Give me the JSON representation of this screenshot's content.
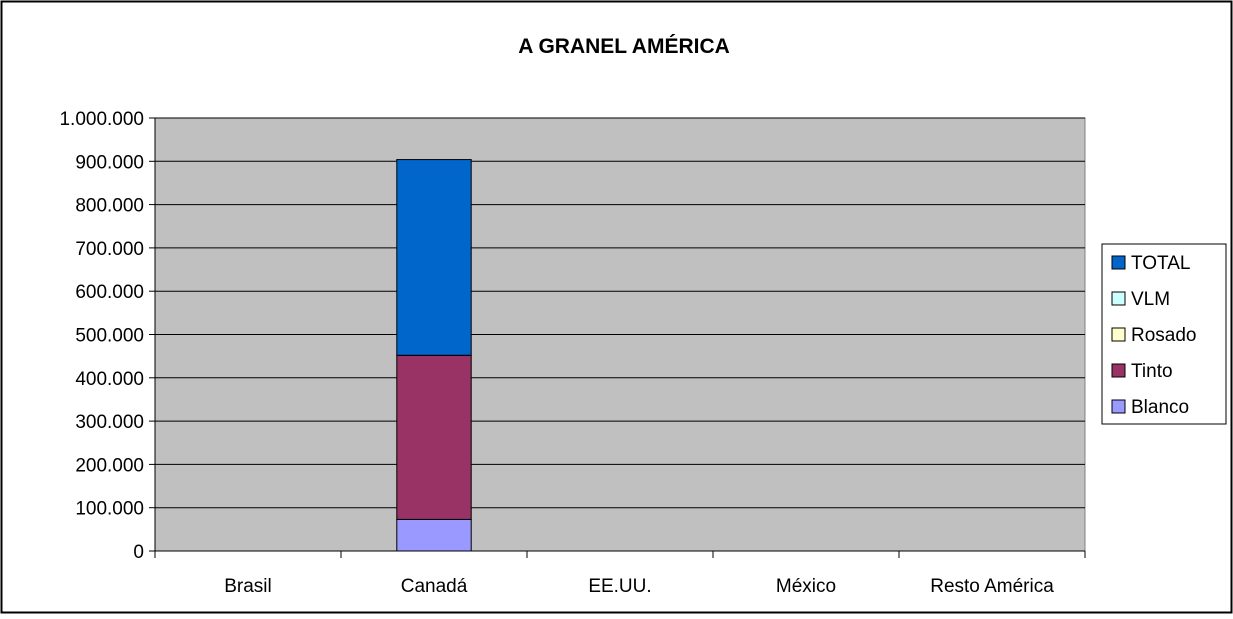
{
  "chart_data": {
    "type": "bar",
    "stacked": true,
    "title": "A GRANEL AMÉRICA",
    "xlabel": "",
    "ylabel": "",
    "categories": [
      "Brasil",
      "Canadá",
      "EE.UU.",
      "México",
      "Resto América"
    ],
    "ylim": [
      0,
      1000000
    ],
    "yticks": [
      0,
      100000,
      200000,
      300000,
      400000,
      500000,
      600000,
      700000,
      800000,
      900000,
      1000000
    ],
    "ytick_labels": [
      "0",
      "100.000",
      "200.000",
      "300.000",
      "400.000",
      "500.000",
      "600.000",
      "700.000",
      "800.000",
      "900.000",
      "1.000.000"
    ],
    "grid": true,
    "legend_position": "right",
    "plot_background": "#c0c0c0",
    "series": [
      {
        "name": "Blanco",
        "color": "#9999ff",
        "values": [
          0,
          73000,
          0,
          0,
          0
        ]
      },
      {
        "name": "Tinto",
        "color": "#993366",
        "values": [
          0,
          379000,
          0,
          0,
          0
        ]
      },
      {
        "name": "Rosado",
        "color": "#ffffcc",
        "values": [
          0,
          0,
          0,
          0,
          0
        ]
      },
      {
        "name": "VLM",
        "color": "#ccffff",
        "values": [
          0,
          0,
          0,
          0,
          0
        ]
      },
      {
        "name": "TOTAL",
        "color": "#0066cc",
        "values": [
          0,
          452000,
          0,
          0,
          0
        ]
      }
    ]
  }
}
